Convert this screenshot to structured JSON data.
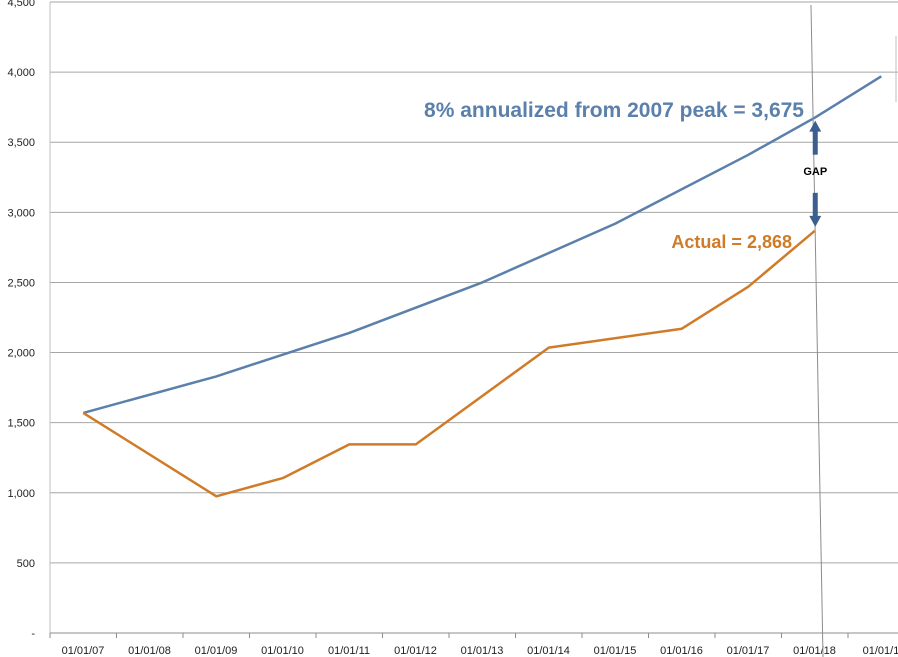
{
  "chart_data": {
    "type": "line",
    "title": "",
    "xlabel": "",
    "ylabel": "",
    "ylim": [
      0,
      4500
    ],
    "yticks": [
      0,
      500,
      1000,
      1500,
      2000,
      2500,
      3000,
      3500,
      4000,
      4500
    ],
    "ytick_labels": [
      "-",
      "500",
      "1,000",
      "1,500",
      "2,000",
      "2,500",
      "3,000",
      "3,500",
      "4,000",
      "4,500"
    ],
    "xlim": [
      0,
      12.7
    ],
    "xticks": [
      0,
      1,
      2,
      3,
      4,
      5,
      6,
      7,
      8,
      9,
      10,
      11,
      12
    ],
    "xtick_labels": [
      "01/01/07",
      "01/01/08",
      "01/01/09",
      "01/01/10",
      "01/01/11",
      "01/01/12",
      "01/01/13",
      "01/01/14",
      "01/01/15",
      "01/01/16",
      "01/01/17",
      "01/01/18",
      "01/01/1"
    ],
    "grid": true,
    "series": [
      {
        "color": "#5a80ab",
        "x": [
          0.5,
          2.5,
          4.5,
          6.5,
          8.5,
          10.5,
          11.5,
          12.5
        ],
        "y": [
          1570,
          1830,
          2140,
          2500,
          2920,
          3410,
          3675,
          3970
        ]
      },
      {
        "color": "#d07b28",
        "x": [
          0.5,
          2.5,
          3.5,
          4.5,
          5.5,
          7.5,
          9.5,
          10.5,
          11.5
        ],
        "y": [
          1570,
          975,
          1105,
          1345,
          1345,
          2035,
          2170,
          2470,
          2868
        ]
      }
    ],
    "annotations": {
      "blue_label": "8% annualized from 2007 peak = 3,675",
      "orange_label": "Actual = 2,868",
      "gap_label": "GAP"
    },
    "colors": {
      "blue": "#5a80ab",
      "orange": "#d07b28",
      "arrow": "#3b5f8f",
      "grid": "#a6a6a6",
      "marker_line": "#8c8c8c"
    }
  }
}
